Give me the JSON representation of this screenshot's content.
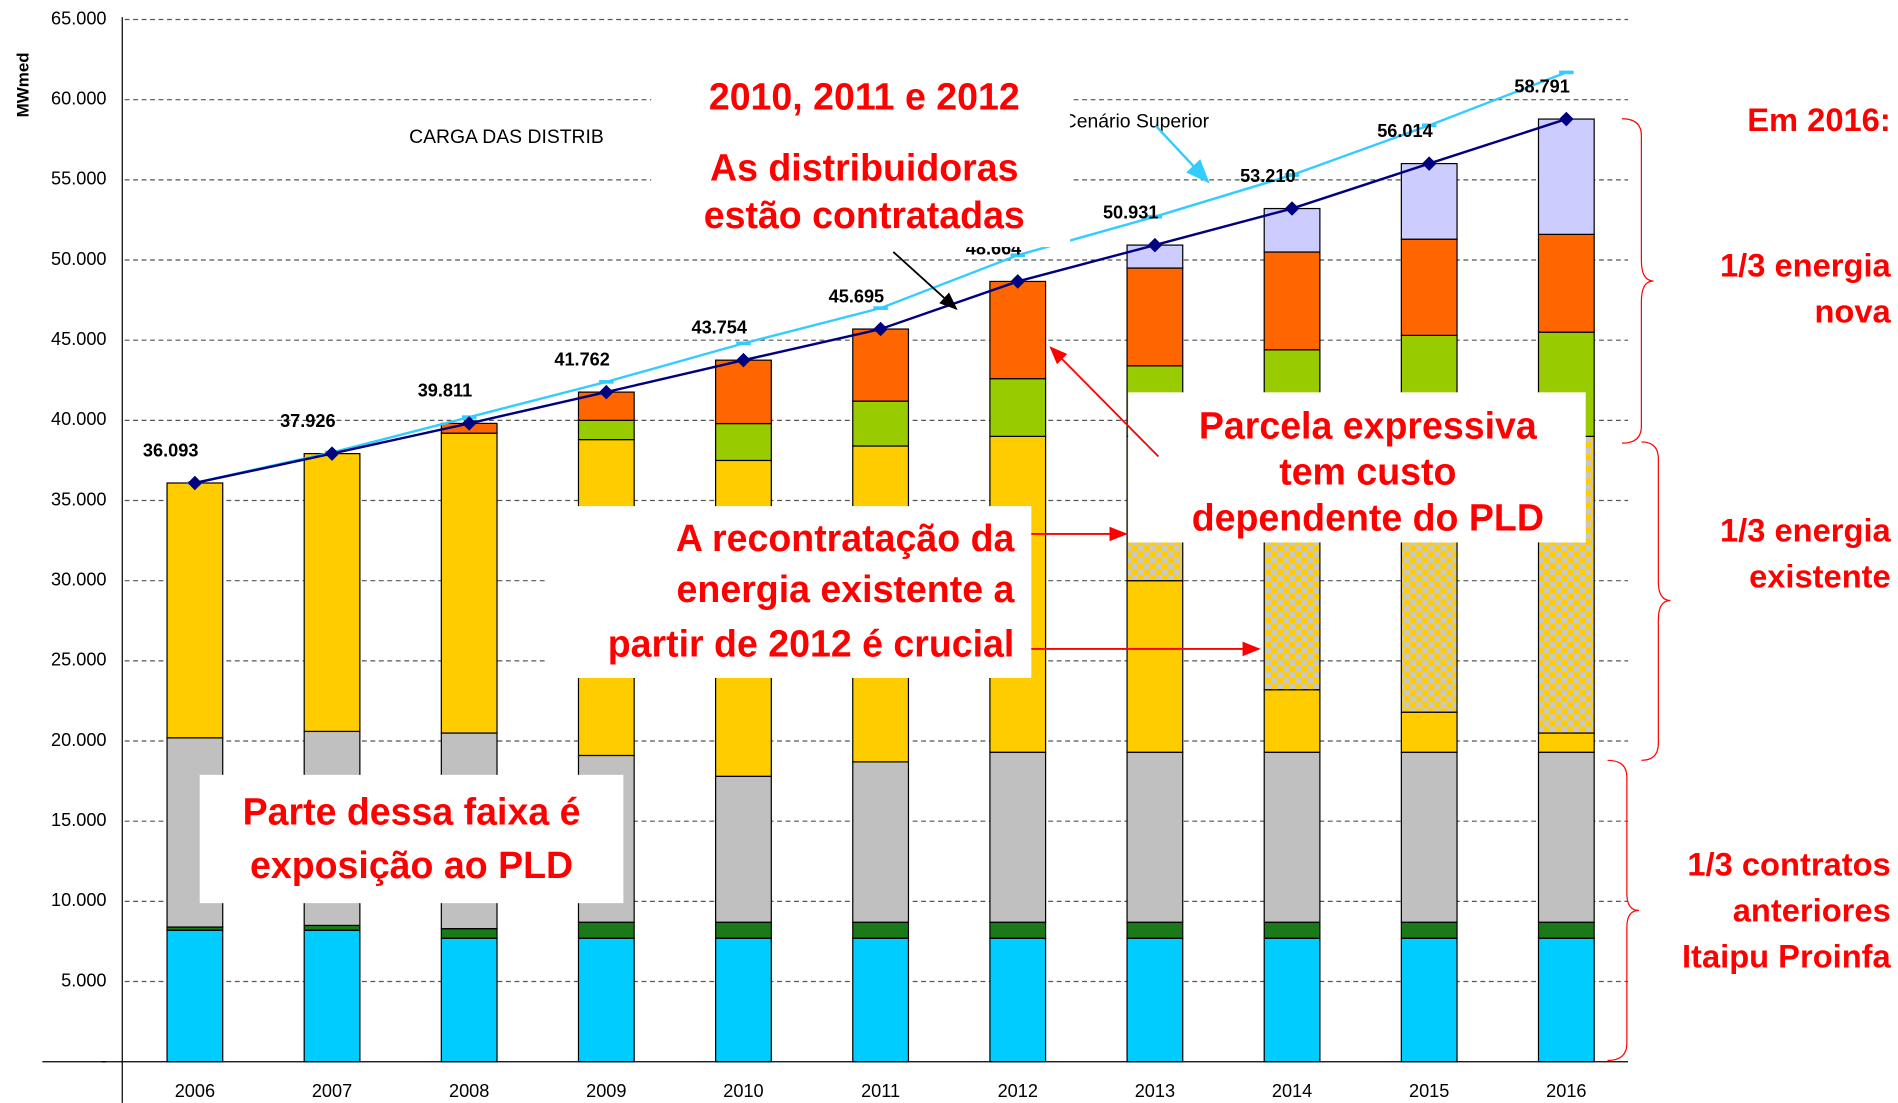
{
  "chart_data": {
    "type": "bar",
    "stacked": true,
    "y_label": "MWmed",
    "categories": [
      "2006",
      "2007",
      "2008",
      "2009",
      "2010",
      "2011",
      "2012",
      "2013",
      "2014",
      "2015",
      "2016"
    ],
    "ylim": [
      0,
      65000
    ],
    "yticks": [
      {
        "value": 0,
        "label": "-"
      },
      {
        "value": 5000,
        "label": "5.000"
      },
      {
        "value": 10000,
        "label": "10.000"
      },
      {
        "value": 15000,
        "label": "15.000"
      },
      {
        "value": 20000,
        "label": "20.000"
      },
      {
        "value": 25000,
        "label": "25.000"
      },
      {
        "value": 30000,
        "label": "30.000"
      },
      {
        "value": 35000,
        "label": "35.000"
      },
      {
        "value": 40000,
        "label": "40.000"
      },
      {
        "value": 45000,
        "label": "45.000"
      },
      {
        "value": 50000,
        "label": "50.000"
      },
      {
        "value": 55000,
        "label": "55.000"
      },
      {
        "value": 60000,
        "label": "60.000"
      },
      {
        "value": 65000,
        "label": "65.000"
      }
    ],
    "grid": true,
    "series": [
      {
        "color": "#00ccff",
        "values": [
          8200,
          8200,
          7700,
          7700,
          7700,
          7700,
          7700,
          7700,
          7700,
          7700,
          7700
        ]
      },
      {
        "color": "#1a7a1a",
        "values": [
          200,
          300,
          600,
          1000,
          1000,
          1000,
          1000,
          1000,
          1000,
          1000,
          1000
        ]
      },
      {
        "color": "#c0c0c0",
        "values": [
          11800,
          12100,
          12200,
          10400,
          9100,
          10000,
          10600,
          10600,
          10600,
          10600,
          10600
        ]
      },
      {
        "color": "#ffcc00",
        "values": [
          15893,
          17326,
          18700,
          19700,
          19700,
          19700,
          19700,
          10700,
          3900,
          2500,
          1200
        ]
      },
      {
        "color": "#ffcc00",
        "pattern": "checker",
        "values": [
          0,
          0,
          0,
          0,
          0,
          0,
          0,
          9000,
          15600,
          17200,
          18500
        ]
      },
      {
        "color": "#99cc00",
        "values": [
          0,
          0,
          0,
          1200,
          2300,
          2800,
          3600,
          4400,
          5600,
          6300,
          6500
        ]
      },
      {
        "color": "#ff6600",
        "values": [
          0,
          0,
          611,
          1762,
          3954,
          4495,
          6064,
          6100,
          6100,
          6000,
          6100
        ]
      },
      {
        "color": "#ccccff",
        "values": [
          0,
          0,
          0,
          0,
          0,
          0,
          0,
          1431,
          2710,
          4714,
          7191
        ]
      }
    ],
    "lines": [
      {
        "color": "#33ccff",
        "values": [
          36100,
          38000,
          40200,
          42400,
          44800,
          47000,
          50300,
          52700,
          55300,
          58400,
          61700
        ]
      },
      {
        "color": "#000080",
        "values": [
          36093,
          37926,
          39811,
          41762,
          43754,
          45695,
          48664,
          50931,
          53210,
          56014,
          58791
        ],
        "value_labels": [
          "36.093",
          "37.926",
          "39.811",
          "41.762",
          "43.754",
          "45.695",
          "48.664",
          "50.931",
          "53.210",
          "56.014",
          "58.791"
        ]
      }
    ],
    "annotations": {
      "load": "CARGA DAS DISTRIB",
      "scenario": "Cenário Superior",
      "years_title": "2010, 2011 e 2012",
      "contracted": [
        "As distribuidoras",
        "estão contratadas"
      ],
      "pld_share": [
        "Parcela expressiva",
        "tem custo",
        "dependente do PLD"
      ],
      "recontract": [
        "A recontratação da",
        "energia existente a",
        "partir de 2012 é crucial"
      ],
      "exposure": [
        "Parte dessa faixa é",
        "exposição ao PLD"
      ]
    },
    "side_notes": {
      "title": "Em 2016:",
      "new": [
        "1/3 energia",
        "nova"
      ],
      "existing": [
        "1/3 energia",
        "existente"
      ],
      "previous": [
        "1/3 contratos",
        "anteriores",
        "Itaipu Proinfa"
      ]
    }
  }
}
